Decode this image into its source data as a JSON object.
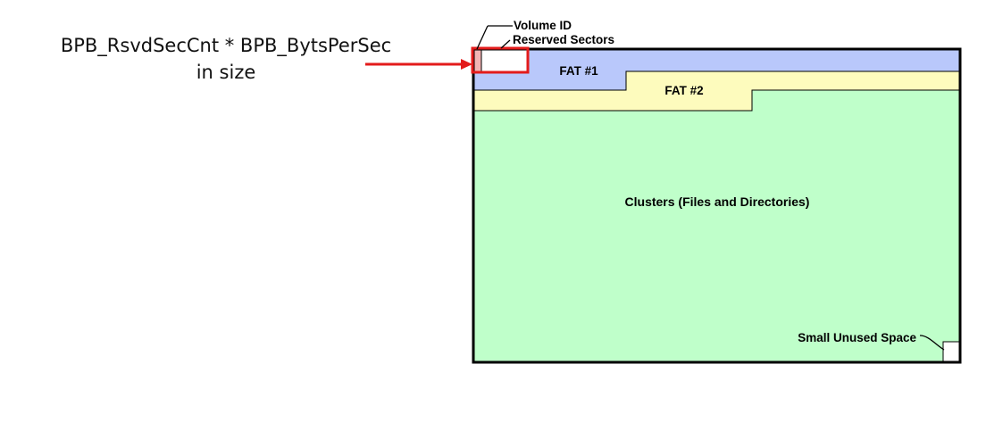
{
  "annotation": {
    "line1": "BPB_RsvdSecCnt * BPB_BytsPerSec",
    "line2": "in size"
  },
  "regions": {
    "volume_id": "Volume ID",
    "reserved_sectors": "Reserved Sectors",
    "fat1": "FAT #1",
    "fat2": "FAT #2",
    "clusters": "Clusters (Files and Directories)",
    "unused": "Small Unused Space"
  },
  "colors": {
    "fat1": "#b9c8fb",
    "fat2": "#fdfbbd",
    "clusters": "#bfffca",
    "volume_id": "#f3b5b5",
    "highlight": "#e31b1b",
    "border": "#000000"
  }
}
